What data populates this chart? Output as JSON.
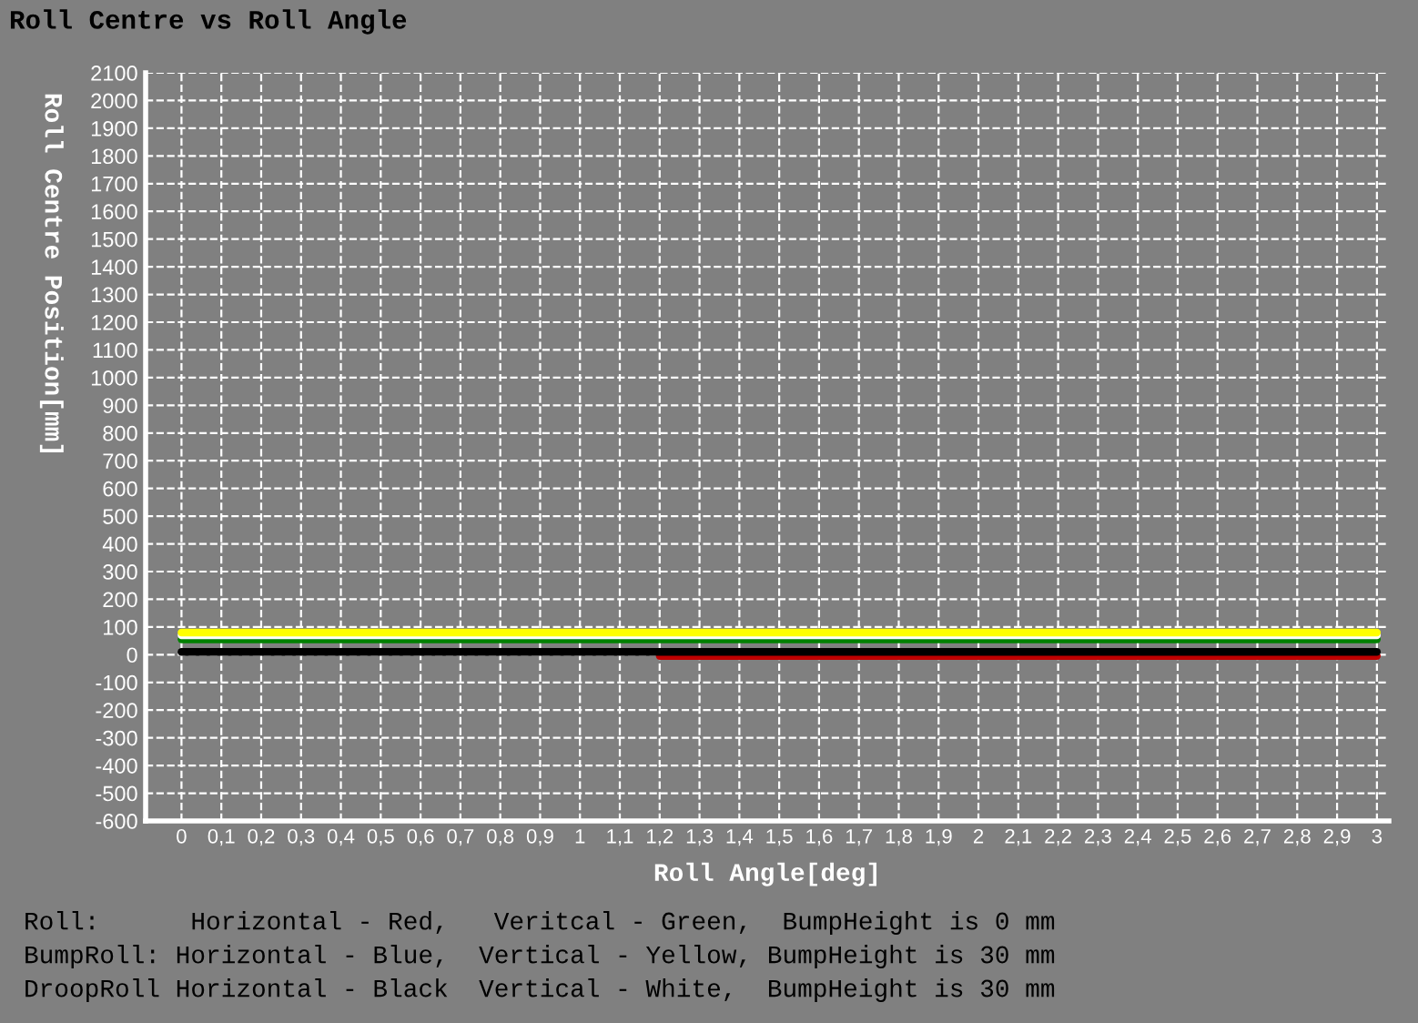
{
  "chart_data": {
    "type": "line",
    "title": "Roll Centre vs Roll Angle",
    "xlabel": "Roll Angle[deg]",
    "ylabel": "Roll Centre Position[mm]",
    "xlim": [
      -0.09,
      3.03
    ],
    "xticks": [
      0,
      {
        "value": 0.1,
        "label": "0,1"
      },
      {
        "value": 0.2,
        "label": "0,2"
      },
      {
        "value": 0.3,
        "label": "0,3"
      },
      {
        "value": 0.4,
        "label": "0,4"
      },
      {
        "value": 0.5,
        "label": "0,5"
      },
      {
        "value": 0.6,
        "label": "0,6"
      },
      {
        "value": 0.7,
        "label": "0,7"
      },
      {
        "value": 0.8,
        "label": "0,8"
      },
      {
        "value": 0.9,
        "label": "0,9"
      },
      1,
      {
        "value": 1.1,
        "label": "1,1"
      },
      {
        "value": 1.2,
        "label": "1,2"
      },
      {
        "value": 1.3,
        "label": "1,3"
      },
      {
        "value": 1.4,
        "label": "1,4"
      },
      {
        "value": 1.5,
        "label": "1,5"
      },
      {
        "value": 1.6,
        "label": "1,6"
      },
      {
        "value": 1.7,
        "label": "1,7"
      },
      {
        "value": 1.8,
        "label": "1,8"
      },
      {
        "value": 1.9,
        "label": "1,9"
      },
      2,
      {
        "value": 2.1,
        "label": "2,1"
      },
      {
        "value": 2.2,
        "label": "2,2"
      },
      {
        "value": 2.3,
        "label": "2,3"
      },
      {
        "value": 2.4,
        "label": "2,4"
      },
      {
        "value": 2.5,
        "label": "2,5"
      },
      {
        "value": 2.6,
        "label": "2,6"
      },
      {
        "value": 2.7,
        "label": "2,7"
      },
      {
        "value": 2.8,
        "label": "2,8"
      },
      {
        "value": 2.9,
        "label": "2,9"
      },
      3
    ],
    "ylim": [
      -600,
      2100
    ],
    "yticks": [
      -600,
      -500,
      -400,
      -300,
      -200,
      -100,
      0,
      100,
      200,
      300,
      400,
      500,
      600,
      700,
      800,
      900,
      1000,
      1100,
      1200,
      1300,
      1400,
      1500,
      1600,
      1700,
      1800,
      1900,
      2000,
      2100
    ],
    "grid": true,
    "line_style": "solid",
    "marker": "none",
    "series": [
      {
        "color": "#c00000",
        "x": [
          1.2,
          3
        ],
        "values": [
          -5,
          -5
        ]
      },
      {
        "color": "#000000",
        "x": [
          0,
          3
        ],
        "values": [
          10,
          10
        ]
      },
      {
        "color": "#008000",
        "x": [
          0,
          3
        ],
        "values": [
          55,
          55
        ]
      },
      {
        "color": "#ffffff",
        "x": [
          0,
          3
        ],
        "values": [
          70,
          70
        ]
      },
      {
        "color": "#ffff00",
        "x": [
          0,
          3
        ],
        "values": [
          80,
          80
        ]
      }
    ],
    "annotations": [
      "Roll:      Horizontal - Red,   Veritcal - Green,  BumpHeight is 0 mm",
      "BumpRoll: Horizontal - Blue,  Vertical - Yellow, BumpHeight is 30 mm",
      "DroopRoll Horizontal - Black  Vertical - White,  BumpHeight is 30 mm"
    ]
  }
}
